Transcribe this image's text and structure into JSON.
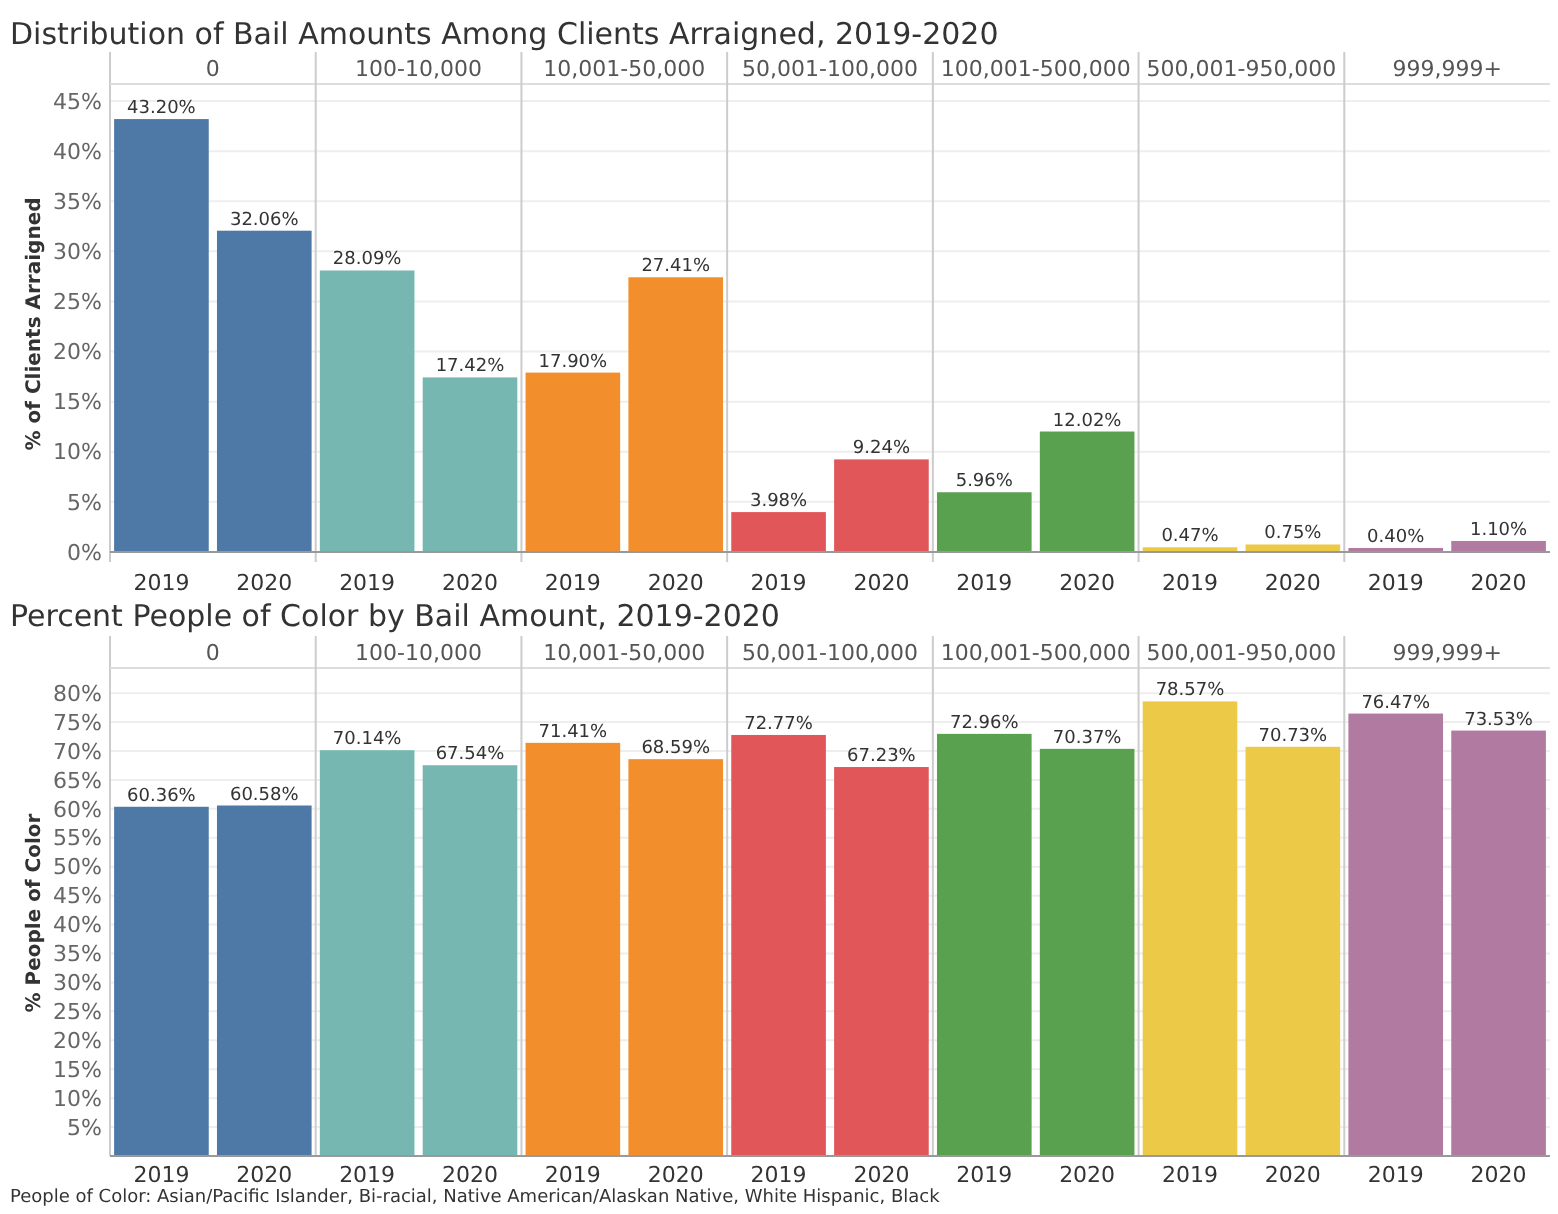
{
  "chart_data": [
    {
      "type": "bar",
      "title": "Distribution of Bail Amounts Among Clients Arraigned, 2019-2020",
      "ylabel": "% of Clients Arraigned",
      "categories": [
        "2019",
        "2020",
        "2019",
        "2020",
        "2019",
        "2020",
        "2019",
        "2020",
        "2019",
        "2020",
        "2019",
        "2020",
        "2019",
        "2020"
      ],
      "values": [
        43.2,
        32.06,
        28.09,
        17.42,
        17.9,
        27.41,
        3.98,
        9.24,
        5.96,
        12.02,
        0.47,
        0.75,
        0.4,
        1.1
      ],
      "value_labels": [
        "43.20%",
        "32.06%",
        "28.09%",
        "17.42%",
        "17.90%",
        "27.41%",
        "3.98%",
        "9.24%",
        "5.96%",
        "12.02%",
        "0.47%",
        "0.75%",
        "0.40%",
        "1.10%"
      ],
      "colors": [
        "#4e79a7",
        "#4e79a7",
        "#76b7b2",
        "#76b7b2",
        "#f28e2b",
        "#f28e2b",
        "#e15759",
        "#e15759",
        "#59a14f",
        "#59a14f",
        "#edc948",
        "#edc948",
        "#b07aa1",
        "#b07aa1"
      ],
      "annotations": [
        "0",
        "100-10,000",
        "10,001-50,000",
        "50,001-100,000",
        "100,001-500,000",
        "500,001-950,000",
        "999,999+"
      ],
      "ylim": [
        -1,
        46.5
      ],
      "yticks": [
        {
          "value": 0,
          "label": "0%"
        },
        {
          "value": 5,
          "label": "5%"
        },
        {
          "value": 10,
          "label": "10%"
        },
        {
          "value": 15,
          "label": "15%"
        },
        {
          "value": 20,
          "label": "20%"
        },
        {
          "value": 25,
          "label": "25%"
        },
        {
          "value": 30,
          "label": "30%"
        },
        {
          "value": 35,
          "label": "35%"
        },
        {
          "value": 40,
          "label": "40%"
        },
        {
          "value": 45,
          "label": "45%"
        }
      ],
      "grid": "y"
    },
    {
      "type": "bar",
      "title": "Percent People of Color by Bail Amount, 2019-2020",
      "ylabel": "% People of Color",
      "categories": [
        "2019",
        "2020",
        "2019",
        "2020",
        "2019",
        "2020",
        "2019",
        "2020",
        "2019",
        "2020",
        "2019",
        "2020",
        "2019",
        "2020"
      ],
      "values": [
        60.36,
        60.58,
        70.14,
        67.54,
        71.41,
        68.59,
        72.77,
        67.23,
        72.96,
        70.37,
        78.57,
        70.73,
        76.47,
        73.53
      ],
      "value_labels": [
        "60.36%",
        "60.58%",
        "70.14%",
        "67.54%",
        "71.41%",
        "68.59%",
        "72.77%",
        "67.23%",
        "72.96%",
        "70.37%",
        "78.57%",
        "70.73%",
        "76.47%",
        "73.53%"
      ],
      "colors": [
        "#4e79a7",
        "#4e79a7",
        "#76b7b2",
        "#76b7b2",
        "#f28e2b",
        "#f28e2b",
        "#e15759",
        "#e15759",
        "#59a14f",
        "#59a14f",
        "#edc948",
        "#edc948",
        "#b07aa1",
        "#b07aa1"
      ],
      "annotations": [
        "0",
        "100-10,000",
        "10,001-50,000",
        "50,001-100,000",
        "100,001-500,000",
        "500,001-950,000",
        "999,999+",
        "People of Color: Asian/Pacific Islander, Bi-racial, Native American/Alaskan Native, White Hispanic, Black"
      ],
      "ylim": [
        0,
        84
      ],
      "yticks": [
        {
          "value": 5,
          "label": "5%"
        },
        {
          "value": 10,
          "label": "10%"
        },
        {
          "value": 15,
          "label": "15%"
        },
        {
          "value": 20,
          "label": "20%"
        },
        {
          "value": 25,
          "label": "25%"
        },
        {
          "value": 30,
          "label": "30%"
        },
        {
          "value": 35,
          "label": "35%"
        },
        {
          "value": 40,
          "label": "40%"
        },
        {
          "value": 45,
          "label": "45%"
        },
        {
          "value": 50,
          "label": "50%"
        },
        {
          "value": 55,
          "label": "55%"
        },
        {
          "value": 60,
          "label": "60%"
        },
        {
          "value": 65,
          "label": "65%"
        },
        {
          "value": 70,
          "label": "70%"
        },
        {
          "value": 75,
          "label": "75%"
        },
        {
          "value": 80,
          "label": "80%"
        }
      ],
      "grid": "y"
    }
  ]
}
